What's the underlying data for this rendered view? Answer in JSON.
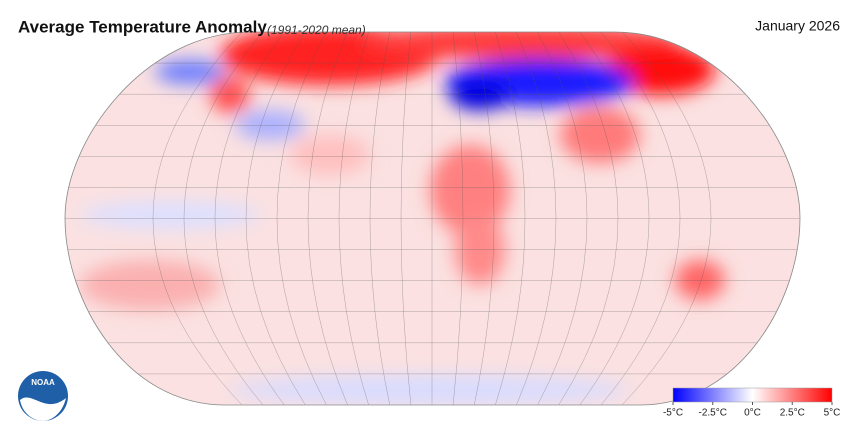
{
  "header": {
    "title": "Average Temperature Anomaly",
    "subtitle": "(1991-2020 mean)",
    "date": "January 2026"
  },
  "logo": {
    "text": "NOAA"
  },
  "colorbar": {
    "range": [
      -5,
      5
    ],
    "colors": [
      "#0000ff",
      "#ffffff",
      "#ff0000"
    ],
    "ticks": [
      {
        "value": -5,
        "label": "-5°C"
      },
      {
        "value": -2.5,
        "label": "-2.5°C"
      },
      {
        "value": 0,
        "label": "0°C"
      },
      {
        "value": 2.5,
        "label": "2.5°C"
      },
      {
        "value": 5,
        "label": "5°C"
      }
    ]
  }
}
